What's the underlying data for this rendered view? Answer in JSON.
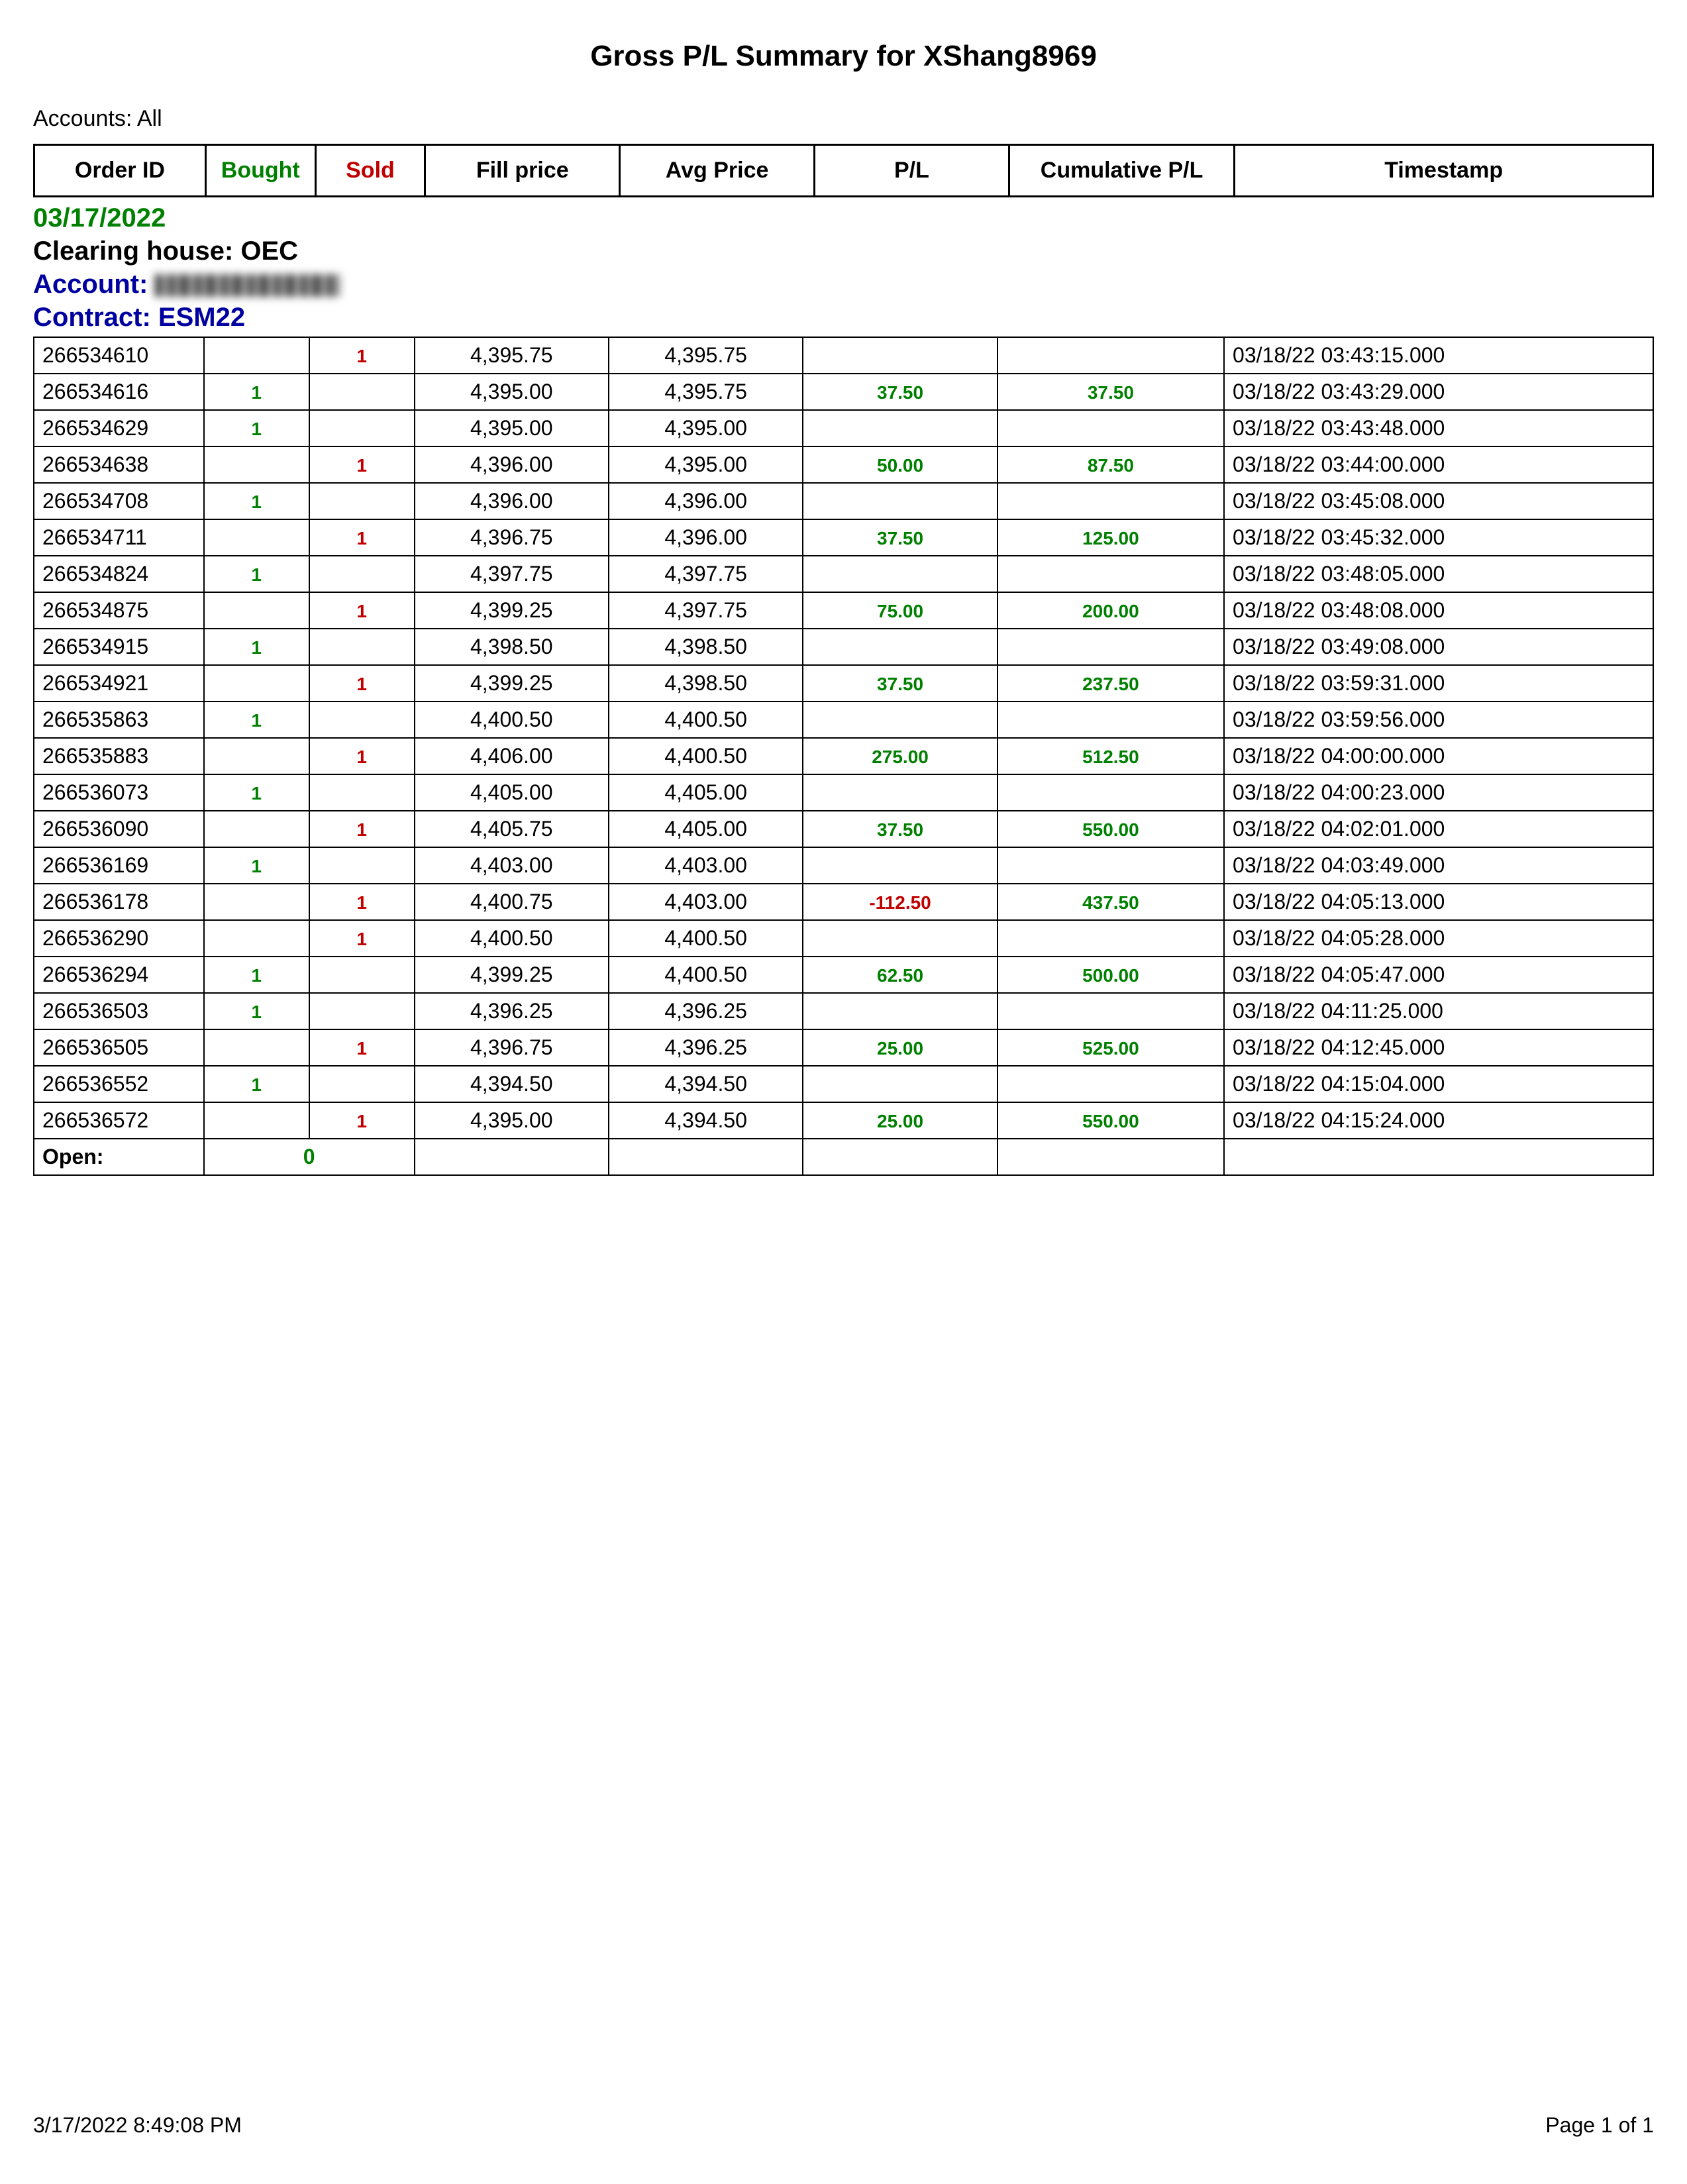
{
  "title": "Gross P/L Summary for XShang8969",
  "accounts_label": "Accounts: All",
  "columns": {
    "order_id": "Order ID",
    "bought": "Bought",
    "sold": "Sold",
    "fill_price": "Fill price",
    "avg_price": "Avg Price",
    "pl": "P/L",
    "cum_pl": "Cumulative P/L",
    "timestamp": "Timestamp"
  },
  "group": {
    "date": "03/17/2022",
    "clearing_label": "Clearing house: ",
    "clearing_value": "OEC",
    "account_label": "Account: ",
    "contract_label": "Contract: ",
    "contract_value": "ESM22"
  },
  "rows": [
    {
      "order_id": "266534610",
      "bought": "",
      "sold": "1",
      "fill": "4,395.75",
      "avg": "4,395.75",
      "pl": "",
      "cpl": "",
      "ts": "03/18/22 03:43:15.000"
    },
    {
      "order_id": "266534616",
      "bought": "1",
      "sold": "",
      "fill": "4,395.00",
      "avg": "4,395.75",
      "pl": "37.50",
      "cpl": "37.50",
      "ts": "03/18/22 03:43:29.000"
    },
    {
      "order_id": "266534629",
      "bought": "1",
      "sold": "",
      "fill": "4,395.00",
      "avg": "4,395.00",
      "pl": "",
      "cpl": "",
      "ts": "03/18/22 03:43:48.000"
    },
    {
      "order_id": "266534638",
      "bought": "",
      "sold": "1",
      "fill": "4,396.00",
      "avg": "4,395.00",
      "pl": "50.00",
      "cpl": "87.50",
      "ts": "03/18/22 03:44:00.000"
    },
    {
      "order_id": "266534708",
      "bought": "1",
      "sold": "",
      "fill": "4,396.00",
      "avg": "4,396.00",
      "pl": "",
      "cpl": "",
      "ts": "03/18/22 03:45:08.000"
    },
    {
      "order_id": "266534711",
      "bought": "",
      "sold": "1",
      "fill": "4,396.75",
      "avg": "4,396.00",
      "pl": "37.50",
      "cpl": "125.00",
      "ts": "03/18/22 03:45:32.000"
    },
    {
      "order_id": "266534824",
      "bought": "1",
      "sold": "",
      "fill": "4,397.75",
      "avg": "4,397.75",
      "pl": "",
      "cpl": "",
      "ts": "03/18/22 03:48:05.000"
    },
    {
      "order_id": "266534875",
      "bought": "",
      "sold": "1",
      "fill": "4,399.25",
      "avg": "4,397.75",
      "pl": "75.00",
      "cpl": "200.00",
      "ts": "03/18/22 03:48:08.000"
    },
    {
      "order_id": "266534915",
      "bought": "1",
      "sold": "",
      "fill": "4,398.50",
      "avg": "4,398.50",
      "pl": "",
      "cpl": "",
      "ts": "03/18/22 03:49:08.000"
    },
    {
      "order_id": "266534921",
      "bought": "",
      "sold": "1",
      "fill": "4,399.25",
      "avg": "4,398.50",
      "pl": "37.50",
      "cpl": "237.50",
      "ts": "03/18/22 03:59:31.000"
    },
    {
      "order_id": "266535863",
      "bought": "1",
      "sold": "",
      "fill": "4,400.50",
      "avg": "4,400.50",
      "pl": "",
      "cpl": "",
      "ts": "03/18/22 03:59:56.000"
    },
    {
      "order_id": "266535883",
      "bought": "",
      "sold": "1",
      "fill": "4,406.00",
      "avg": "4,400.50",
      "pl": "275.00",
      "cpl": "512.50",
      "ts": "03/18/22 04:00:00.000"
    },
    {
      "order_id": "266536073",
      "bought": "1",
      "sold": "",
      "fill": "4,405.00",
      "avg": "4,405.00",
      "pl": "",
      "cpl": "",
      "ts": "03/18/22 04:00:23.000"
    },
    {
      "order_id": "266536090",
      "bought": "",
      "sold": "1",
      "fill": "4,405.75",
      "avg": "4,405.00",
      "pl": "37.50",
      "cpl": "550.00",
      "ts": "03/18/22 04:02:01.000"
    },
    {
      "order_id": "266536169",
      "bought": "1",
      "sold": "",
      "fill": "4,403.00",
      "avg": "4,403.00",
      "pl": "",
      "cpl": "",
      "ts": "03/18/22 04:03:49.000"
    },
    {
      "order_id": "266536178",
      "bought": "",
      "sold": "1",
      "fill": "4,400.75",
      "avg": "4,403.00",
      "pl": "-112.50",
      "cpl": "437.50",
      "ts": "03/18/22 04:05:13.000"
    },
    {
      "order_id": "266536290",
      "bought": "",
      "sold": "1",
      "fill": "4,400.50",
      "avg": "4,400.50",
      "pl": "",
      "cpl": "",
      "ts": "03/18/22 04:05:28.000"
    },
    {
      "order_id": "266536294",
      "bought": "1",
      "sold": "",
      "fill": "4,399.25",
      "avg": "4,400.50",
      "pl": "62.50",
      "cpl": "500.00",
      "ts": "03/18/22 04:05:47.000"
    },
    {
      "order_id": "266536503",
      "bought": "1",
      "sold": "",
      "fill": "4,396.25",
      "avg": "4,396.25",
      "pl": "",
      "cpl": "",
      "ts": "03/18/22 04:11:25.000"
    },
    {
      "order_id": "266536505",
      "bought": "",
      "sold": "1",
      "fill": "4,396.75",
      "avg": "4,396.25",
      "pl": "25.00",
      "cpl": "525.00",
      "ts": "03/18/22 04:12:45.000"
    },
    {
      "order_id": "266536552",
      "bought": "1",
      "sold": "",
      "fill": "4,394.50",
      "avg": "4,394.50",
      "pl": "",
      "cpl": "",
      "ts": "03/18/22 04:15:04.000"
    },
    {
      "order_id": "266536572",
      "bought": "",
      "sold": "1",
      "fill": "4,395.00",
      "avg": "4,394.50",
      "pl": "25.00",
      "cpl": "550.00",
      "ts": "03/18/22 04:15:24.000"
    }
  ],
  "open_row": {
    "label": "Open:",
    "value": "0"
  },
  "footer": {
    "left": "3/17/2022 8:49:08 PM",
    "right": "Page 1 of 1"
  },
  "colors": {
    "positive": "#008000",
    "negative": "#c00000",
    "account_blue": "#0000a0",
    "border": "#000000",
    "background": "#ffffff"
  }
}
